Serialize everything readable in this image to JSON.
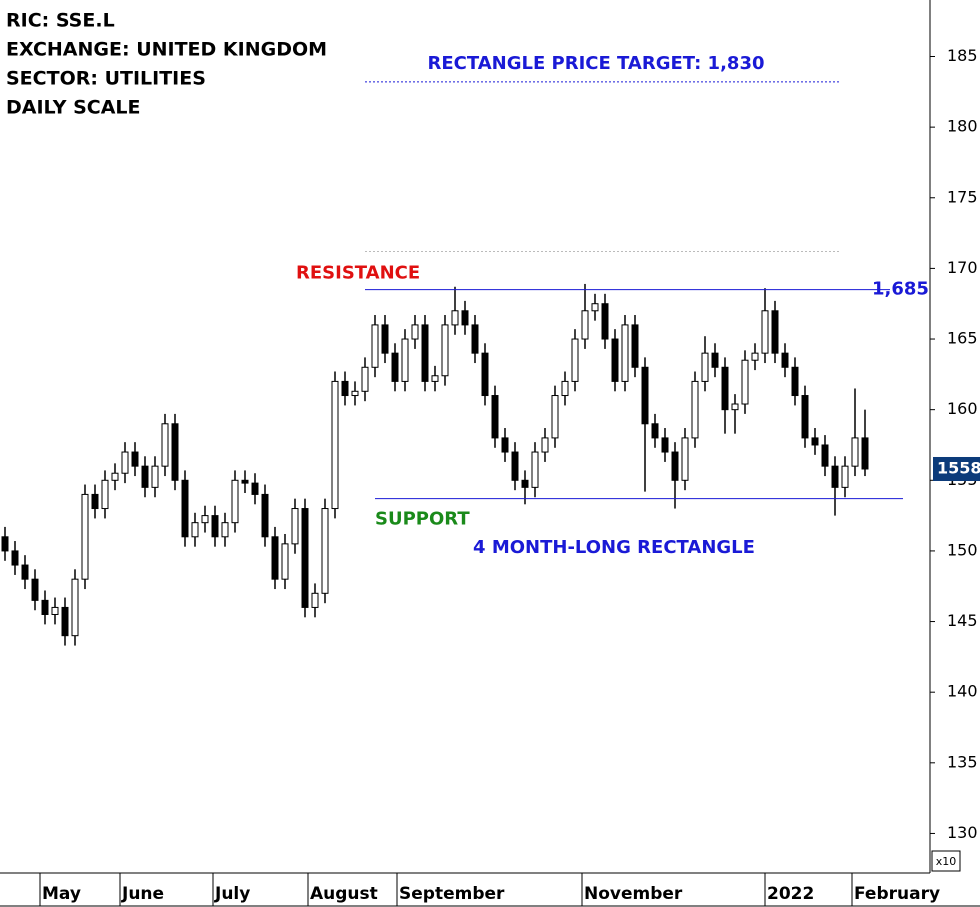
{
  "chart_data": {
    "type": "candlestick",
    "header": [
      "RIC: SSE.L",
      "EXCHANGE: UNITED KINGDOM",
      "SECTOR: UTILITIES",
      "DAILY SCALE"
    ],
    "x": [
      0,
      1,
      2,
      3,
      4,
      5,
      6,
      7,
      8,
      9,
      10,
      11,
      12,
      13,
      14,
      15,
      16,
      17,
      18,
      19,
      20,
      21,
      22,
      23,
      24,
      25,
      26,
      27,
      28,
      29,
      30,
      31,
      32,
      33,
      34,
      35,
      36,
      37,
      38,
      39,
      40,
      41,
      42,
      43,
      44,
      45,
      46,
      47,
      48,
      49,
      50,
      51,
      52,
      53,
      54,
      55,
      56,
      57,
      58,
      59,
      60,
      61,
      62,
      63,
      64,
      65,
      66,
      67,
      68,
      69,
      70,
      71,
      72,
      73,
      74,
      75,
      76,
      77,
      78,
      79,
      80,
      81,
      82,
      83,
      84,
      85,
      86
    ],
    "candles": [
      [
        151,
        151.7,
        149.3,
        150
      ],
      [
        150,
        150.7,
        148.3,
        149
      ],
      [
        149,
        149.7,
        147.3,
        148
      ],
      [
        148,
        148.7,
        145.8,
        146.5
      ],
      [
        146.5,
        147.2,
        144.8,
        145.5
      ],
      [
        145.5,
        146.7,
        144.8,
        146
      ],
      [
        146,
        146.7,
        143.3,
        144
      ],
      [
        144,
        148.7,
        143.3,
        148
      ],
      [
        148,
        154.7,
        147.3,
        154
      ],
      [
        154,
        154.7,
        152.3,
        153
      ],
      [
        153,
        155.7,
        152.3,
        155
      ],
      [
        155,
        156.2,
        154.3,
        155.5
      ],
      [
        155.5,
        157.7,
        154.8,
        157
      ],
      [
        157,
        157.7,
        155.3,
        156
      ],
      [
        156,
        156.7,
        153.8,
        154.5
      ],
      [
        154.5,
        156.7,
        153.8,
        156
      ],
      [
        156,
        159.7,
        155.3,
        159
      ],
      [
        159,
        159.7,
        154.3,
        155
      ],
      [
        155,
        155.7,
        150.3,
        151
      ],
      [
        151,
        152.7,
        150.3,
        152
      ],
      [
        152,
        153.2,
        151.3,
        152.5
      ],
      [
        152.5,
        153.2,
        150.3,
        151
      ],
      [
        151,
        152.7,
        150.3,
        152
      ],
      [
        152,
        155.7,
        151.3,
        155
      ],
      [
        155,
        155.7,
        154.1,
        154.8
      ],
      [
        154.8,
        155.5,
        153.3,
        154
      ],
      [
        154,
        154.7,
        150.3,
        151
      ],
      [
        151,
        151.7,
        147.3,
        148
      ],
      [
        148,
        151.2,
        147.3,
        150.5
      ],
      [
        150.5,
        153.7,
        149.8,
        153
      ],
      [
        153,
        153.7,
        145.3,
        146
      ],
      [
        146,
        147.7,
        145.3,
        147
      ],
      [
        147,
        153.7,
        146.3,
        153
      ],
      [
        153,
        162.7,
        152.3,
        162
      ],
      [
        162,
        162.7,
        160.3,
        161
      ],
      [
        161,
        162,
        160.3,
        161.3
      ],
      [
        161.3,
        163.7,
        160.6,
        163
      ],
      [
        163,
        166.7,
        162.3,
        166
      ],
      [
        166,
        166.7,
        163.3,
        164
      ],
      [
        164,
        164.7,
        161.3,
        162
      ],
      [
        162,
        165.7,
        161.3,
        165
      ],
      [
        165,
        166.7,
        164.3,
        166
      ],
      [
        166,
        166.7,
        161.3,
        162
      ],
      [
        162,
        163.1,
        161.3,
        162.4
      ],
      [
        162.4,
        166.7,
        161.7,
        166
      ],
      [
        166,
        168.7,
        165.3,
        167
      ],
      [
        167,
        167.7,
        165.3,
        166
      ],
      [
        166,
        166.7,
        163.3,
        164
      ],
      [
        164,
        164.7,
        160.3,
        161
      ],
      [
        161,
        161.7,
        157.3,
        158
      ],
      [
        158,
        158.7,
        156.3,
        157
      ],
      [
        157,
        157.7,
        154.3,
        155
      ],
      [
        155,
        155.7,
        153.3,
        154.5
      ],
      [
        154.5,
        157.7,
        153.8,
        157
      ],
      [
        157,
        158.7,
        156.3,
        158
      ],
      [
        158,
        161.7,
        157.3,
        161
      ],
      [
        161,
        162.7,
        160.3,
        162
      ],
      [
        162,
        165.7,
        161.3,
        165
      ],
      [
        165,
        168.9,
        164.3,
        167
      ],
      [
        167,
        168.2,
        166.3,
        167.5
      ],
      [
        167.5,
        168.2,
        164.3,
        165
      ],
      [
        165,
        165.7,
        161.3,
        162
      ],
      [
        162,
        166.7,
        161.3,
        166
      ],
      [
        166,
        166.7,
        162.3,
        163
      ],
      [
        163,
        163.7,
        154.2,
        159
      ],
      [
        159,
        159.7,
        157.3,
        158
      ],
      [
        158,
        158.7,
        156.3,
        157
      ],
      [
        157,
        157.7,
        153,
        155
      ],
      [
        155,
        158.7,
        154.3,
        158
      ],
      [
        158,
        162.7,
        157.3,
        162
      ],
      [
        162,
        165.2,
        161.3,
        164
      ],
      [
        164,
        164.7,
        162.3,
        163
      ],
      [
        163,
        163.7,
        158.3,
        160
      ],
      [
        160,
        161.1,
        158.3,
        160.4
      ],
      [
        160.4,
        164.2,
        159.7,
        163.5
      ],
      [
        163.5,
        164.7,
        162.8,
        164
      ],
      [
        164,
        168.6,
        163.3,
        167
      ],
      [
        167,
        167.7,
        163.3,
        164
      ],
      [
        164,
        164.7,
        162.3,
        163
      ],
      [
        163,
        163.7,
        160.3,
        161
      ],
      [
        161,
        161.7,
        157.3,
        158
      ],
      [
        158,
        158.7,
        156.8,
        157.5
      ],
      [
        157.5,
        158.2,
        155.3,
        156
      ],
      [
        156,
        156.7,
        152.5,
        154.5
      ],
      [
        154.5,
        156.7,
        153.8,
        156
      ],
      [
        156,
        161.5,
        155.3,
        158
      ],
      [
        158,
        160,
        155.3,
        155.8
      ]
    ],
    "xlim": [
      -0.5,
      92.5
    ],
    "xticks": [
      {
        "value": 3.5,
        "label": "May"
      },
      {
        "value": 11.5,
        "label": "June"
      },
      {
        "value": 20.8,
        "label": "July"
      },
      {
        "value": 30.3,
        "label": "August"
      },
      {
        "value": 39.2,
        "label": "September"
      },
      {
        "value": 57.7,
        "label": "November"
      },
      {
        "value": 76,
        "label": "2022"
      },
      {
        "value": 84.7,
        "label": "February"
      }
    ],
    "ylim": [
      127.2,
      189
    ],
    "yticks": [
      130,
      135,
      140,
      145,
      150,
      155,
      160,
      165,
      170,
      175,
      180,
      185
    ],
    "last_price": {
      "value": 155.8,
      "label": "1558"
    },
    "scale_note": "x10",
    "resistance": {
      "name": "RESISTANCE",
      "value": 168.5,
      "label": "1,685"
    },
    "support": {
      "name": "SUPPORT",
      "value": 153.7
    },
    "target": {
      "label": "RECTANGLE PRICE TARGET: 1,830",
      "value": 183.2
    },
    "reference_line": 171.2,
    "pattern_label": "4 MONTH-LONG RECTANGLE"
  }
}
